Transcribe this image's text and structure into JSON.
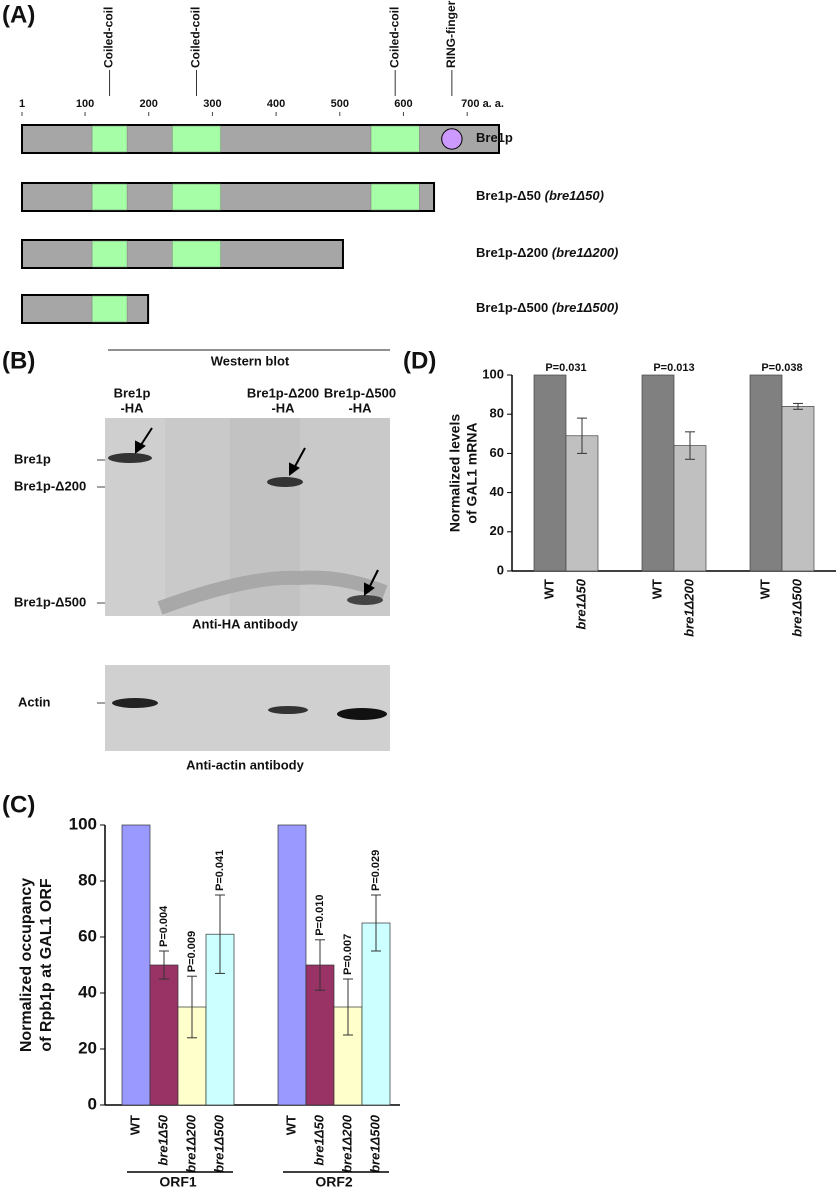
{
  "panel_labels": [
    "(A)",
    "(B)",
    "(C)",
    "(D)"
  ],
  "domain_map": {
    "xlim": [
      1,
      750
    ],
    "ticks": [
      1,
      100,
      200,
      300,
      400,
      500,
      600,
      {
        "value": 700,
        "label": "700 a. a."
      }
    ],
    "domains": [
      {
        "label": "Coiled-coil",
        "start": 111,
        "end": 166,
        "shape": "box",
        "color": "#a6ffa6"
      },
      {
        "label": "Coiled-coil",
        "start": 237,
        "end": 313,
        "shape": "box",
        "color": "#a6ffa6"
      },
      {
        "label": "Coiled-coil",
        "start": 549,
        "end": 625,
        "shape": "box",
        "color": "#a6ffa6"
      },
      {
        "label": "RING-finger",
        "start": 660,
        "end": 692,
        "shape": "circle",
        "color": "#cc99ff"
      }
    ],
    "construct_color": "#a6a6a6",
    "constructs": [
      {
        "name": "Bre1p",
        "length": 750
      },
      {
        "name": "Bre1p-Δ50",
        "allele": "(bre1Δ50)",
        "length": 648
      },
      {
        "name": "Bre1p-Δ200",
        "allele": "(bre1Δ200)",
        "length": 505
      },
      {
        "name": "Bre1p-Δ500",
        "allele": "(bre1Δ500)",
        "length": 199
      }
    ]
  },
  "blot": {
    "title": "Western blot",
    "lanes": [
      [
        "Bre1p",
        "-HA"
      ],
      [
        "Bre1p-Δ200",
        "-HA"
      ],
      [
        "Bre1p-Δ500",
        "-HA"
      ]
    ],
    "bands": [
      "Bre1p",
      "Bre1p-Δ200",
      "Bre1p-Δ500"
    ],
    "ha_caption": "Anti-HA antibody",
    "actin_label": "Actin",
    "actin_caption": "Anti-actin antibody"
  },
  "chart_data": [
    {
      "type": "grouped_bar",
      "ylabel": [
        "Normalized occupancy",
        "of Rpb1p at GAL1 ORF"
      ],
      "categories": [
        "ORF1",
        "ORF2"
      ],
      "series": [
        {
          "name": "WT",
          "color": "#9999ff",
          "values": [
            100,
            100
          ]
        },
        {
          "name": "bre1Δ50",
          "color": "#993366",
          "values": [
            50,
            50
          ],
          "errors": [
            5,
            9
          ],
          "p_labels": [
            "P=0.004",
            "P=0.010"
          ]
        },
        {
          "name": "bre1Δ200",
          "color": "#ffffcc",
          "values": [
            35,
            35
          ],
          "errors": [
            11,
            10
          ],
          "p_labels": [
            "P=0.009",
            "P=0.007"
          ]
        },
        {
          "name": "bre1Δ500",
          "color": "#ccffff",
          "values": [
            61,
            65
          ],
          "errors": [
            14,
            10
          ],
          "p_labels": [
            "P=0.041",
            "P=0.029"
          ]
        }
      ],
      "ylim": [
        0,
        100
      ],
      "yticks": [
        0,
        20,
        40,
        60,
        80,
        100
      ]
    },
    {
      "type": "paired_bar",
      "ylabel": [
        "Normalized levels",
        "of GAL1 mRNA"
      ],
      "colors": [
        "#808080",
        "#c0c0c0"
      ],
      "groups": [
        {
          "labels": [
            "WT",
            "bre1Δ50"
          ],
          "values": [
            100,
            69
          ],
          "errors": [
            null,
            9
          ],
          "p_label": "P=0.031"
        },
        {
          "labels": [
            "WT",
            "bre1Δ200"
          ],
          "values": [
            100,
            64
          ],
          "errors": [
            null,
            7
          ],
          "p_label": "P=0.013"
        },
        {
          "labels": [
            "WT",
            "bre1Δ500"
          ],
          "values": [
            100,
            84
          ],
          "errors": [
            null,
            1.5
          ],
          "p_label": "P=0.038"
        }
      ],
      "ylim": [
        0,
        100
      ],
      "yticks": [
        0,
        20,
        40,
        60,
        80,
        100
      ]
    }
  ]
}
